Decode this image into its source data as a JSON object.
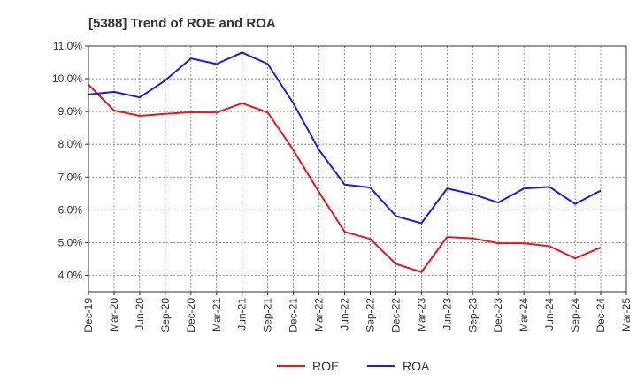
{
  "chart_data": {
    "type": "line",
    "title": "[5388]  Trend of ROE and ROA",
    "x": [
      "Dec-19",
      "Mar-20",
      "Jun-20",
      "Sep-20",
      "Dec-20",
      "Mar-21",
      "Jun-21",
      "Sep-21",
      "Dec-21",
      "Mar-22",
      "Jun-22",
      "Sep-22",
      "Dec-22",
      "Mar-23",
      "Jun-23",
      "Sep-23",
      "Dec-23",
      "Mar-24",
      "Jun-24",
      "Sep-24",
      "Dec-24",
      "Mar-25"
    ],
    "y_ticks": [
      "4.0%",
      "5.0%",
      "6.0%",
      "7.0%",
      "8.0%",
      "9.0%",
      "10.0%",
      "11.0%"
    ],
    "ylim": [
      3.5,
      11.0
    ],
    "grid": true,
    "legend_position": "bottom-center",
    "series": [
      {
        "name": "ROE",
        "color": "#e8171b",
        "values": [
          9.82,
          9.03,
          8.87,
          8.93,
          8.98,
          8.97,
          9.25,
          8.97,
          7.82,
          6.54,
          5.33,
          5.11,
          4.35,
          4.1,
          5.17,
          5.13,
          4.98,
          4.98,
          4.89,
          4.52,
          4.85,
          null
        ]
      },
      {
        "name": "ROA",
        "color": "#1c1ce8",
        "values": [
          9.52,
          9.6,
          9.43,
          9.95,
          10.62,
          10.45,
          10.8,
          10.45,
          9.25,
          7.83,
          6.77,
          6.68,
          5.81,
          5.59,
          6.65,
          6.48,
          6.22,
          6.65,
          6.7,
          6.18,
          6.59,
          null
        ]
      }
    ]
  }
}
